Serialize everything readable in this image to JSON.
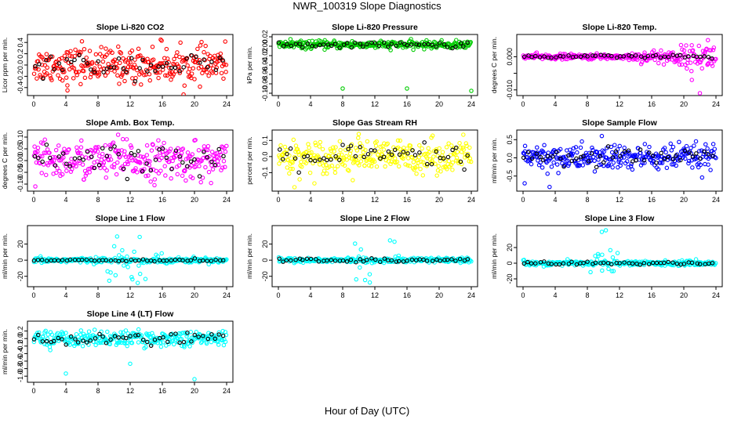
{
  "title": "NWR_100319  Slope Diagnostics",
  "xlabel": "Hour of Day (UTC)",
  "colors": {
    "red": "#ff0000",
    "green": "#00cc00",
    "magenta": "#ff00ff",
    "yellow": "#ffff00",
    "blue": "#0000ff",
    "cyan": "#00ffff",
    "black": "#000000"
  },
  "chart_data": [
    {
      "type": "scatter",
      "title": "Slope Li-820 CO2",
      "ylabel": "Licor ppm per min.",
      "color": "#ff0000",
      "xlim": [
        0,
        24
      ],
      "ylim": [
        -0.5,
        0.5
      ],
      "xticks": [
        0,
        4,
        8,
        12,
        16,
        20,
        24
      ],
      "xtick_labels": [
        "0",
        "4",
        "8",
        "12",
        "16",
        "20",
        "24"
      ],
      "yticks": [
        -0.4,
        -0.2,
        0.0,
        0.2,
        0.4
      ],
      "ytick_labels": [
        "-0.4",
        "-0.2",
        "0.0",
        "0.2",
        "0.4"
      ],
      "spread": 0.15,
      "black_spread": 0.1,
      "outliers": [
        [
          4.2,
          -0.45
        ],
        [
          15.8,
          0.45
        ],
        [
          6,
          0.42
        ],
        [
          12.5,
          -0.33
        ],
        [
          20,
          -0.25
        ]
      ]
    },
    {
      "type": "scatter",
      "title": "Slope Li-820 Pressure",
      "ylabel": "kPa per min.",
      "color": "#00cc00",
      "xlim": [
        0,
        24
      ],
      "ylim": [
        -0.1,
        0.02
      ],
      "xticks": [
        0,
        4,
        8,
        12,
        16,
        20,
        24
      ],
      "xtick_labels": [
        "0",
        "4",
        "8",
        "12",
        "16",
        "20",
        "24"
      ],
      "yticks": [
        -0.1,
        -0.08,
        -0.06,
        -0.04,
        -0.02,
        0.0,
        0.02
      ],
      "ytick_labels": [
        "-0.10",
        "-0.08",
        "-0.06",
        "-0.04",
        "-0.02",
        "0.00",
        "0.02"
      ],
      "spread": 0.004,
      "black_spread": 0.003,
      "center": 0.003,
      "outliers": [
        [
          8,
          -0.09
        ],
        [
          16,
          -0.09
        ],
        [
          24,
          -0.095
        ],
        [
          1.5,
          0.015
        ]
      ]
    },
    {
      "type": "scatter",
      "title": "Slope Li-820 Temp.",
      "ylabel": "degrees C per min.",
      "color": "#ff00ff",
      "xlim": [
        0,
        24
      ],
      "ylim": [
        -0.011,
        0.006
      ],
      "xticks": [
        0,
        4,
        8,
        12,
        16,
        20,
        24
      ],
      "xtick_labels": [
        "0",
        "4",
        "8",
        "12",
        "16",
        "20",
        "24"
      ],
      "yticks": [
        -0.01,
        -0.005,
        0.0
      ],
      "ytick_labels": [
        "-0.010",
        "",
        "0.000"
      ],
      "spread": 0.0004,
      "black_spread": 0.0003,
      "grow": true,
      "outliers": [
        [
          21,
          -0.007
        ],
        [
          22,
          -0.011
        ],
        [
          23,
          0.005
        ]
      ]
    },
    {
      "type": "scatter",
      "title": "Slope Amb. Box Temp.",
      "ylabel": "degrees C per min.",
      "color": "#ff00ff",
      "xlim": [
        0,
        24
      ],
      "ylim": [
        -0.12,
        0.12
      ],
      "xticks": [
        0,
        4,
        8,
        12,
        16,
        20,
        24
      ],
      "xtick_labels": [
        "0",
        "4",
        "8",
        "12",
        "16",
        "20",
        "24"
      ],
      "yticks": [
        -0.1,
        -0.05,
        0.0,
        0.05,
        0.1
      ],
      "ytick_labels": [
        "-0.10",
        "-0.05",
        "0.00",
        "0.05",
        "0.10"
      ],
      "spread": 0.04,
      "black_spread": 0.03,
      "outliers": [
        [
          0.2,
          -0.11
        ],
        [
          10.5,
          0.11
        ]
      ]
    },
    {
      "type": "scatter",
      "title": "Slope Gas Stream RH",
      "ylabel": "percent per min.",
      "color": "#ffff00",
      "xlim": [
        0,
        24
      ],
      "ylim": [
        -0.2,
        0.15
      ],
      "xticks": [
        0,
        4,
        8,
        12,
        16,
        20,
        24
      ],
      "xtick_labels": [
        "0",
        "4",
        "8",
        "12",
        "16",
        "20",
        "24"
      ],
      "yticks": [
        -0.1,
        0.0,
        0.1
      ],
      "ytick_labels": [
        "-0.1",
        "0.0",
        "0.1"
      ],
      "spread": 0.05,
      "black_spread": 0.04,
      "outliers": [
        [
          2,
          -0.19
        ],
        [
          10,
          0.14
        ]
      ]
    },
    {
      "type": "scatter",
      "title": "Slope Sample Flow",
      "ylabel": "ml/min per min.",
      "color": "#0000ff",
      "xlim": [
        0,
        24
      ],
      "ylim": [
        -0.85,
        0.7
      ],
      "xticks": [
        0,
        4,
        8,
        12,
        16,
        20,
        24
      ],
      "xtick_labels": [
        "0",
        "4",
        "8",
        "12",
        "16",
        "20",
        "24"
      ],
      "yticks": [
        -0.5,
        0.0,
        0.5
      ],
      "ytick_labels": [
        "-0.5",
        "0.0",
        "0.5"
      ],
      "spread": 0.18,
      "black_spread": 0.12,
      "outliers": [
        [
          3.3,
          -0.8
        ],
        [
          0.2,
          -0.7
        ],
        [
          9.8,
          0.6
        ]
      ]
    },
    {
      "type": "scatter",
      "title": "Slope Line 1 Flow",
      "ylabel": "ml/min per min.",
      "color": "#00ffff",
      "xlim": [
        0,
        24
      ],
      "ylim": [
        -30,
        40
      ],
      "xticks": [
        0,
        4,
        8,
        12,
        16,
        20,
        24
      ],
      "xtick_labels": [
        "0",
        "4",
        "8",
        "12",
        "16",
        "20",
        "24"
      ],
      "yticks": [
        -20,
        0,
        20
      ],
      "ytick_labels": [
        "-20",
        "0",
        "20"
      ],
      "spread": 1.5,
      "black_spread": 0.8,
      "burst": [
        9,
        16,
        16
      ],
      "outliers": []
    },
    {
      "type": "scatter",
      "title": "Slope Line 2 Flow",
      "ylabel": "ml/min per min.",
      "color": "#00ffff",
      "xlim": [
        0,
        24
      ],
      "ylim": [
        -30,
        40
      ],
      "xticks": [
        0,
        4,
        8,
        12,
        16,
        20,
        24
      ],
      "xtick_labels": [
        "0",
        "4",
        "8",
        "12",
        "16",
        "20",
        "24"
      ],
      "yticks": [
        -20,
        0,
        20
      ],
      "ytick_labels": [
        "-20",
        "0",
        "20"
      ],
      "spread": 1.5,
      "black_spread": 1.0,
      "burst": [
        9.5,
        15,
        18
      ],
      "outliers": []
    },
    {
      "type": "scatter",
      "title": "Slope Line 3 Flow",
      "ylabel": "ml/min per min.",
      "color": "#00ffff",
      "xlim": [
        0,
        24
      ],
      "ylim": [
        -27,
        45
      ],
      "xticks": [
        0,
        4,
        8,
        12,
        16,
        20,
        24
      ],
      "xtick_labels": [
        "0",
        "4",
        "8",
        "12",
        "16",
        "20",
        "24"
      ],
      "yticks": [
        -20,
        0,
        20
      ],
      "ytick_labels": [
        "-20",
        "0",
        "20"
      ],
      "spread": 1.5,
      "black_spread": 1.0,
      "burst": [
        8,
        12,
        14
      ],
      "outliers": [
        [
          9.8,
          40
        ],
        [
          10.3,
          42
        ]
      ]
    },
    {
      "type": "scatter",
      "title": "Slope Line 4 (LT) Flow",
      "ylabel": "ml/min per min.",
      "color": "#00ffff",
      "xlim": [
        0,
        24
      ],
      "ylim": [
        -1.1,
        0.4
      ],
      "xticks": [
        0,
        4,
        8,
        12,
        16,
        20,
        24
      ],
      "xtick_labels": [
        "0",
        "4",
        "8",
        "12",
        "16",
        "20",
        "24"
      ],
      "yticks": [
        -1.0,
        -0.8,
        -0.6,
        -0.4,
        -0.2,
        0.0,
        0.2
      ],
      "ytick_labels": [
        "-1.0",
        "-0.8",
        "-0.6",
        "-0.4",
        "-0.2",
        "0.0",
        "0.2"
      ],
      "spread": 0.1,
      "black_spread": 0.08,
      "outliers": [
        [
          4,
          -0.93
        ],
        [
          12,
          -0.67
        ],
        [
          20,
          -1.08
        ]
      ]
    }
  ]
}
